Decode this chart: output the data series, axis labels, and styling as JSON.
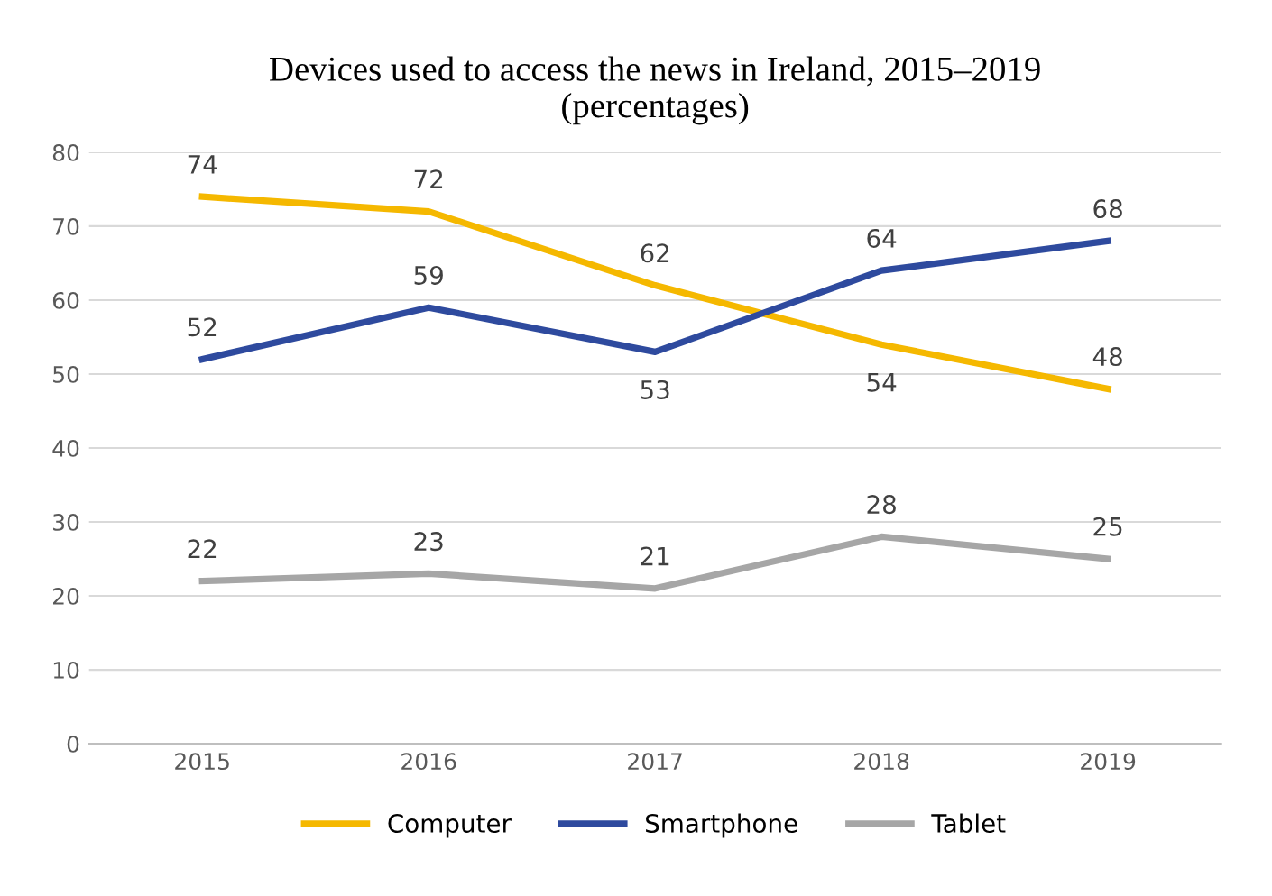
{
  "chart_data": {
    "type": "line",
    "title": "Devices used to access the news in Ireland, 2015–2019\n(percentages)",
    "categories": [
      "2015",
      "2016",
      "2017",
      "2018",
      "2019"
    ],
    "series": [
      {
        "name": "Computer",
        "color": "#f5b800",
        "values": [
          74,
          72,
          62,
          54,
          48
        ]
      },
      {
        "name": "Smartphone",
        "color": "#2e4a9e",
        "values": [
          52,
          59,
          53,
          64,
          68
        ]
      },
      {
        "name": "Tablet",
        "color": "#a6a6a6",
        "values": [
          22,
          23,
          21,
          28,
          25
        ]
      }
    ],
    "ylim": [
      0,
      80
    ],
    "yticks": [
      0,
      10,
      20,
      30,
      40,
      50,
      60,
      70,
      80
    ],
    "grid": "y",
    "legend": "bottom",
    "data_labels": true,
    "marker": "none",
    "line_style": "solid"
  }
}
